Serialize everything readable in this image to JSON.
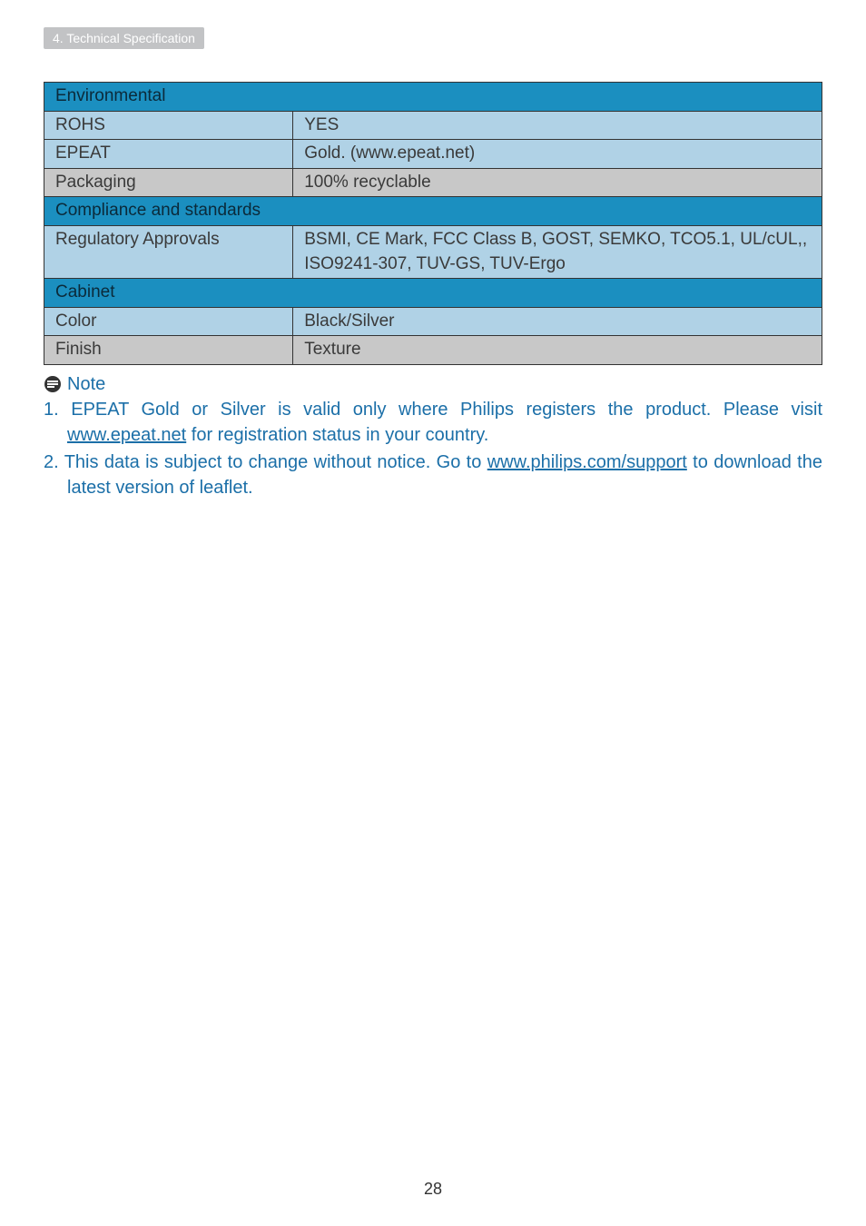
{
  "colors": {
    "section_bg": "#1b8fc0",
    "section_fg": "#0b2a3a",
    "rowA_bg": "#b0d2e6",
    "rowB_bg": "#c8c8c8",
    "rowA_fg": "#3a3a3a",
    "rowB_fg": "#3a3a3a",
    "note_color": "#1b6fa8",
    "header_tab_bg": "#c2c3c5",
    "header_tab_fg": "#ffffff",
    "body_text": "#333333"
  },
  "header_tab": "4. Technical Specification",
  "sections": [
    {
      "title": "Environmental",
      "rows": [
        {
          "label": "ROHS",
          "value": "YES",
          "shade": "A"
        },
        {
          "label": "EPEAT",
          "value": "Gold. (www.epeat.net)",
          "shade": "A"
        },
        {
          "label": "Packaging",
          "value": "100% recyclable",
          "shade": "B"
        }
      ]
    },
    {
      "title": "Compliance and standards",
      "rows": [
        {
          "label": "Regulatory Approvals",
          "value": "BSMI, CE Mark, FCC Class B, GOST, SEMKO, TCO5.1, UL/cUL,, ISO9241-307, TUV-GS, TUV-Ergo",
          "shade": "A"
        }
      ]
    },
    {
      "title": "Cabinet",
      "rows": [
        {
          "label": "Color",
          "value": "Black/Silver",
          "shade": "A"
        },
        {
          "label": "Finish",
          "value": "Texture",
          "shade": "B"
        }
      ]
    }
  ],
  "note_label": "Note",
  "notes": [
    {
      "pre": "EPEAT Gold or Silver is valid only where Philips registers the product. Please visit ",
      "link": "www.epeat.net",
      "post": " for registration status in your country."
    },
    {
      "pre": "This data is subject to change without notice. Go to ",
      "link": "www.philips.com/support",
      "post": " to download the latest version of leaflet."
    }
  ],
  "page_number": "28"
}
